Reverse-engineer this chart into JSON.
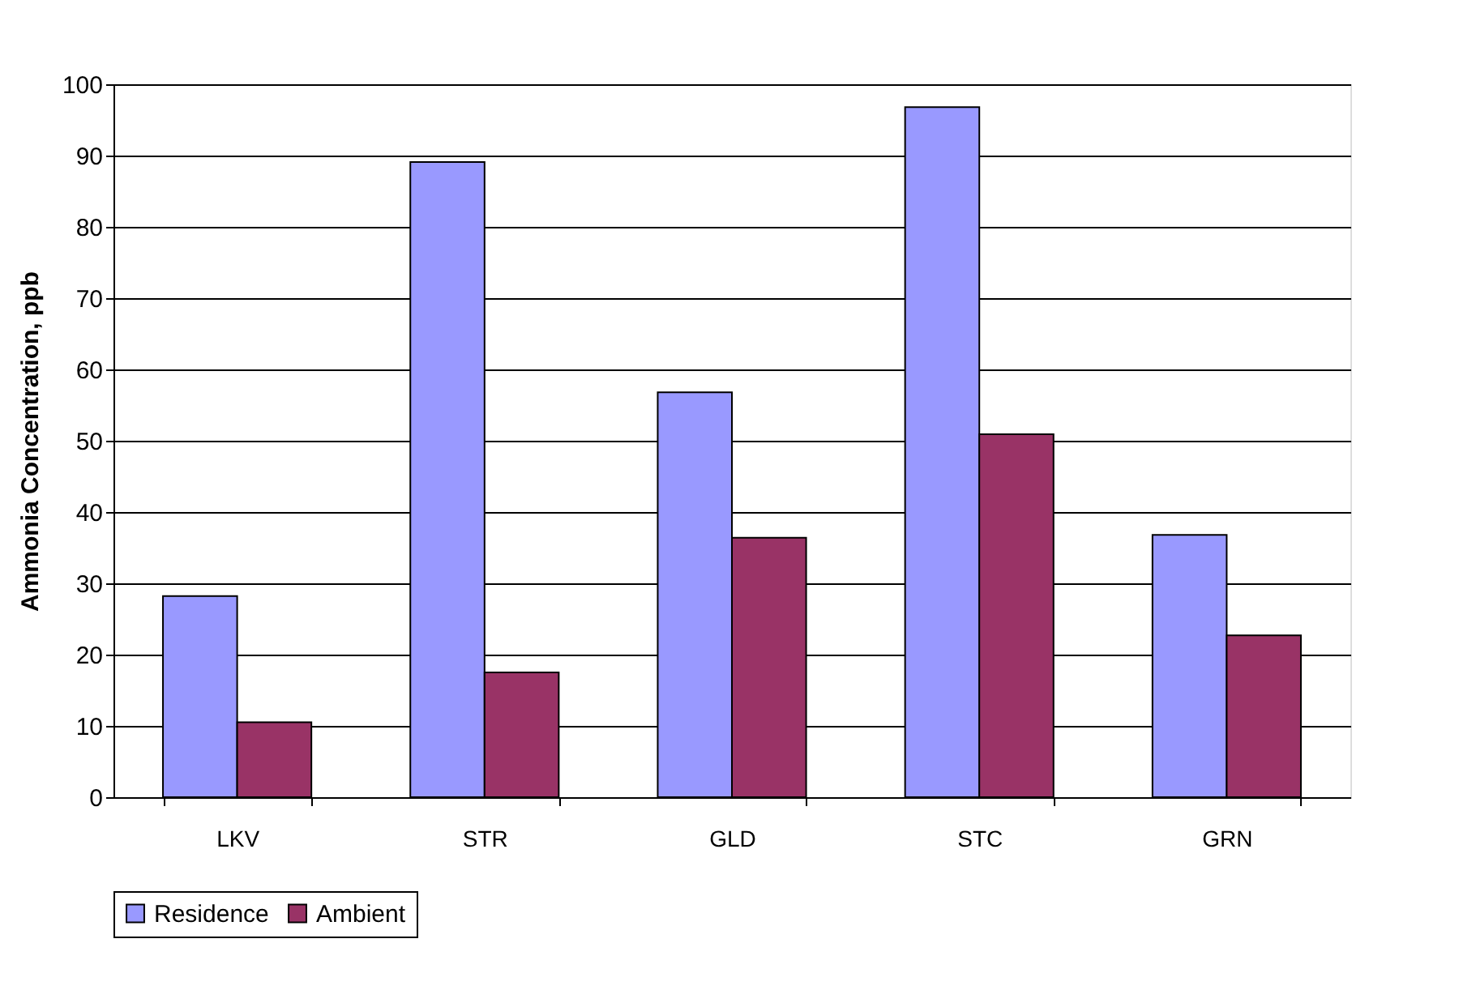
{
  "chart_data": {
    "type": "bar",
    "ylabel": "Ammonia Concentration, ppb",
    "categories": [
      "LKV",
      "STR",
      "GLD",
      "STC",
      "GRN"
    ],
    "series": [
      {
        "name": "Residence",
        "color": "#9999ff",
        "values": [
          28.2,
          89.1,
          56.8,
          96.8,
          36.8
        ]
      },
      {
        "name": "Ambient",
        "color": "#993366",
        "values": [
          10.5,
          17.5,
          36.4,
          50.9,
          22.7
        ]
      }
    ],
    "ylim": [
      0,
      100
    ],
    "yticks": [
      0,
      10,
      20,
      30,
      40,
      50,
      60,
      70,
      80,
      90,
      100
    ],
    "grid": "y",
    "legend": "bottom"
  }
}
